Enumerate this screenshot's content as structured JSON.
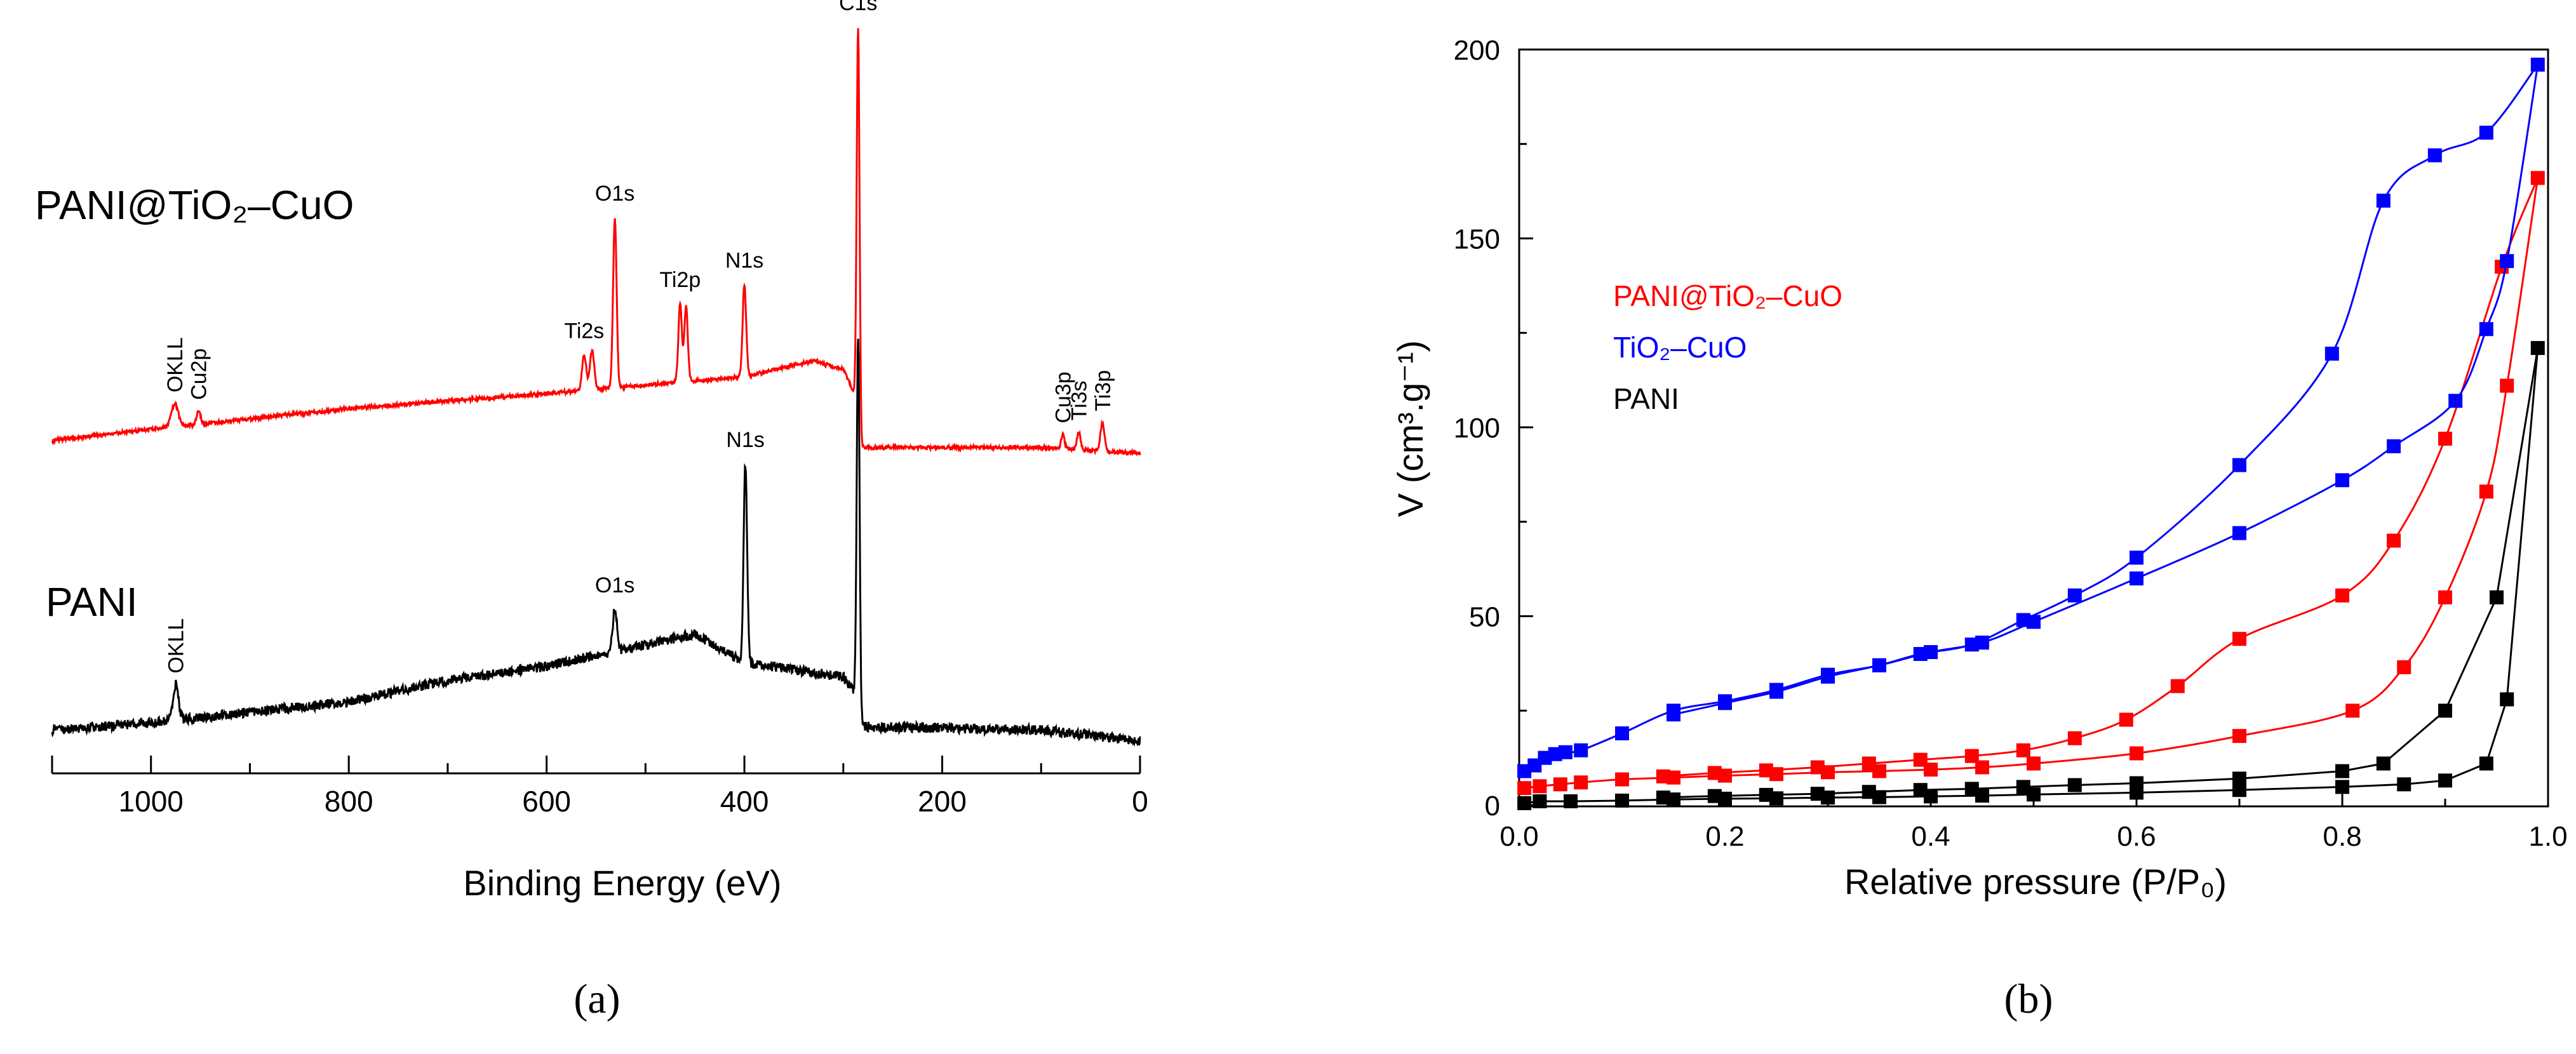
{
  "panel_labels": {
    "a": "(a)",
    "b": "(b)"
  },
  "chart_data": [
    {
      "type": "line",
      "panel": "(a)",
      "xlabel": "Binding Energy (eV)",
      "ylabel": "",
      "xlim": [
        1100,
        0
      ],
      "x_reversed": true,
      "yaxis": "none",
      "x_ticks": [
        1000,
        800,
        600,
        400,
        200,
        0
      ],
      "x_minor_step": 100,
      "series": [
        {
          "name": "PANI@TiO₂–CuO",
          "color": "#ff0000",
          "baseline": [
            [
              1100,
              1.0
            ],
            [
              1000,
              2.6
            ],
            [
              800,
              5.5
            ],
            [
              600,
              7.6
            ],
            [
              500,
              8.8
            ],
            [
              400,
              10.0
            ],
            [
              330,
              12.2
            ],
            [
              300,
              11.0
            ],
            [
              287,
              7.0
            ],
            [
              282,
              0.0
            ],
            [
              200,
              0.0
            ],
            [
              100,
              0.0
            ],
            [
              0,
              -0.8
            ]
          ],
          "peaks": [
            {
              "x": 976,
              "h": 3.2,
              "w": 5,
              "label": "OKLL"
            },
            {
              "x": 952,
              "h": 1.8,
              "w": 3,
              "label": "Cu2p"
            },
            {
              "x": 562,
              "h": 5.0,
              "w": 3,
              "label": "Ti2s"
            },
            {
              "x": 554,
              "h": 5.5,
              "w": 3,
              "label": ""
            },
            {
              "x": 531,
              "h": 24.0,
              "w": 2.5,
              "label": "O1s"
            },
            {
              "x": 465,
              "h": 11.0,
              "w": 2.5,
              "label": "Ti2p"
            },
            {
              "x": 459,
              "h": 10.5,
              "w": 2.5,
              "label": ""
            },
            {
              "x": 400,
              "h": 13.0,
              "w": 2.5,
              "label": "N1s"
            },
            {
              "x": 285,
              "h": 55.0,
              "w": 2.0,
              "label": "C1s"
            },
            {
              "x": 78,
              "h": 2.0,
              "w": 2.5,
              "label": "Cu3p"
            },
            {
              "x": 62,
              "h": 2.5,
              "w": 2.5,
              "label": "Ti3s"
            },
            {
              "x": 38,
              "h": 4.0,
              "w": 3,
              "label": "Ti3p"
            }
          ],
          "series_label": "PANI@TiO₂–CuO"
        },
        {
          "name": "PANI",
          "color": "#000000",
          "baseline": [
            [
              1100,
              0.0
            ],
            [
              1000,
              1.0
            ],
            [
              800,
              4.0
            ],
            [
              700,
              7.0
            ],
            [
              600,
              9.0
            ],
            [
              500,
              12.0
            ],
            [
              450,
              13.5
            ],
            [
              400,
              9.5
            ],
            [
              300,
              7.5
            ],
            [
              287,
              5.0
            ],
            [
              280,
              0.5
            ],
            [
              200,
              0.3
            ],
            [
              100,
              0.0
            ],
            [
              0,
              -1.5
            ]
          ],
          "peaks": [
            {
              "x": 975,
              "h": 5.0,
              "w": 4,
              "label": "OKLL"
            },
            {
              "x": 531,
              "h": 6.0,
              "w": 3,
              "label": "O1s"
            },
            {
              "x": 399,
              "h": 28.0,
              "w": 2.5,
              "label": "N1s"
            },
            {
              "x": 285,
              "h": 52.0,
              "w": 2.0,
              "label": ""
            }
          ],
          "series_label": "PANI"
        }
      ]
    },
    {
      "type": "scatter",
      "panel": "(b)",
      "xlabel": "Relative pressure (P/P₀)",
      "ylabel": "V (cm³.g⁻¹)",
      "xlim": [
        0.0,
        1.0
      ],
      "ylim": [
        0,
        200
      ],
      "x_ticks": [
        0.0,
        0.2,
        0.4,
        0.6,
        0.8,
        1.0
      ],
      "y_ticks": [
        0,
        50,
        100,
        150,
        200
      ],
      "legend": "left",
      "series": [
        {
          "name": "PANI@TiO₂–CuO",
          "color": "#ff0000",
          "adsorption": [
            [
              0.005,
              4.5
            ],
            [
              0.02,
              5.0
            ],
            [
              0.04,
              5.5
            ],
            [
              0.06,
              6.0
            ],
            [
              0.1,
              6.8
            ],
            [
              0.15,
              7.3
            ],
            [
              0.2,
              7.8
            ],
            [
              0.25,
              8.2
            ],
            [
              0.3,
              8.7
            ],
            [
              0.35,
              9.0
            ],
            [
              0.4,
              9.4
            ],
            [
              0.45,
              10.0
            ],
            [
              0.5,
              11.0
            ],
            [
              0.6,
              13.7
            ],
            [
              0.7,
              18.3
            ],
            [
              0.81,
              25.0
            ],
            [
              0.86,
              36.5
            ],
            [
              0.9,
              55.0
            ],
            [
              0.94,
              83.0
            ],
            [
              0.96,
              111.0
            ],
            [
              0.99,
              166.0
            ]
          ],
          "desorption": [
            [
              0.955,
              142.5
            ],
            [
              0.9,
              97.0
            ],
            [
              0.85,
              70.0
            ],
            [
              0.8,
              55.5
            ],
            [
              0.7,
              44.0
            ],
            [
              0.64,
              31.5
            ],
            [
              0.59,
              22.6
            ],
            [
              0.54,
              17.7
            ],
            [
              0.49,
              14.5
            ],
            [
              0.44,
              13.0
            ],
            [
              0.39,
              12.0
            ],
            [
              0.34,
              11.0
            ],
            [
              0.29,
              10.0
            ],
            [
              0.24,
              9.2
            ],
            [
              0.19,
              8.5
            ],
            [
              0.14,
              7.6
            ]
          ]
        },
        {
          "name": "TiO₂–CuO",
          "color": "#0000ff",
          "adsorption": [
            [
              0.005,
              9.0
            ],
            [
              0.015,
              10.5
            ],
            [
              0.025,
              12.5
            ],
            [
              0.035,
              13.5
            ],
            [
              0.045,
              14.0
            ],
            [
              0.06,
              14.5
            ],
            [
              0.1,
              19.0
            ],
            [
              0.15,
              25.0
            ],
            [
              0.2,
              27.5
            ],
            [
              0.25,
              30.5
            ],
            [
              0.3,
              34.5
            ],
            [
              0.35,
              37.0
            ],
            [
              0.4,
              40.5
            ],
            [
              0.45,
              43.0
            ],
            [
              0.5,
              48.5
            ],
            [
              0.6,
              60.0
            ],
            [
              0.7,
              72.0
            ],
            [
              0.8,
              86.0
            ],
            [
              0.85,
              95.0
            ],
            [
              0.91,
              107.0
            ],
            [
              0.94,
              126.0
            ],
            [
              0.96,
              144.0
            ],
            [
              0.99,
              196.0
            ]
          ],
          "desorption": [
            [
              0.94,
              178.0
            ],
            [
              0.89,
              172.0
            ],
            [
              0.84,
              160.0
            ],
            [
              0.79,
              119.5
            ],
            [
              0.7,
              90.0
            ],
            [
              0.6,
              65.5
            ],
            [
              0.54,
              55.5
            ],
            [
              0.49,
              49.0
            ],
            [
              0.44,
              42.5
            ],
            [
              0.39,
              40.0
            ],
            [
              0.35,
              37.0
            ],
            [
              0.3,
              34.0
            ],
            [
              0.25,
              30.0
            ],
            [
              0.2,
              27.0
            ],
            [
              0.15,
              24.0
            ]
          ]
        },
        {
          "name": "PANI",
          "color": "#000000",
          "adsorption": [
            [
              0.005,
              0.5
            ],
            [
              0.02,
              1.0
            ],
            [
              0.05,
              1.0
            ],
            [
              0.1,
              1.2
            ],
            [
              0.15,
              1.5
            ],
            [
              0.2,
              1.7
            ],
            [
              0.25,
              1.8
            ],
            [
              0.3,
              2.0
            ],
            [
              0.35,
              2.1
            ],
            [
              0.4,
              2.3
            ],
            [
              0.45,
              2.5
            ],
            [
              0.5,
              2.8
            ],
            [
              0.6,
              3.3
            ],
            [
              0.7,
              4.0
            ],
            [
              0.8,
              4.8
            ],
            [
              0.86,
              5.5
            ],
            [
              0.9,
              6.5
            ],
            [
              0.94,
              11.0
            ],
            [
              0.96,
              28.0
            ],
            [
              0.99,
              121.0
            ]
          ],
          "desorption": [
            [
              0.95,
              55.0
            ],
            [
              0.9,
              25.0
            ],
            [
              0.84,
              11.0
            ],
            [
              0.8,
              9.0
            ],
            [
              0.7,
              7.0
            ],
            [
              0.6,
              5.8
            ],
            [
              0.54,
              5.3
            ],
            [
              0.49,
              4.8
            ],
            [
              0.44,
              4.3
            ],
            [
              0.39,
              4.0
            ],
            [
              0.34,
              3.5
            ],
            [
              0.29,
              3.0
            ],
            [
              0.24,
              2.7
            ],
            [
              0.19,
              2.4
            ],
            [
              0.14,
              2.0
            ]
          ]
        }
      ]
    }
  ]
}
